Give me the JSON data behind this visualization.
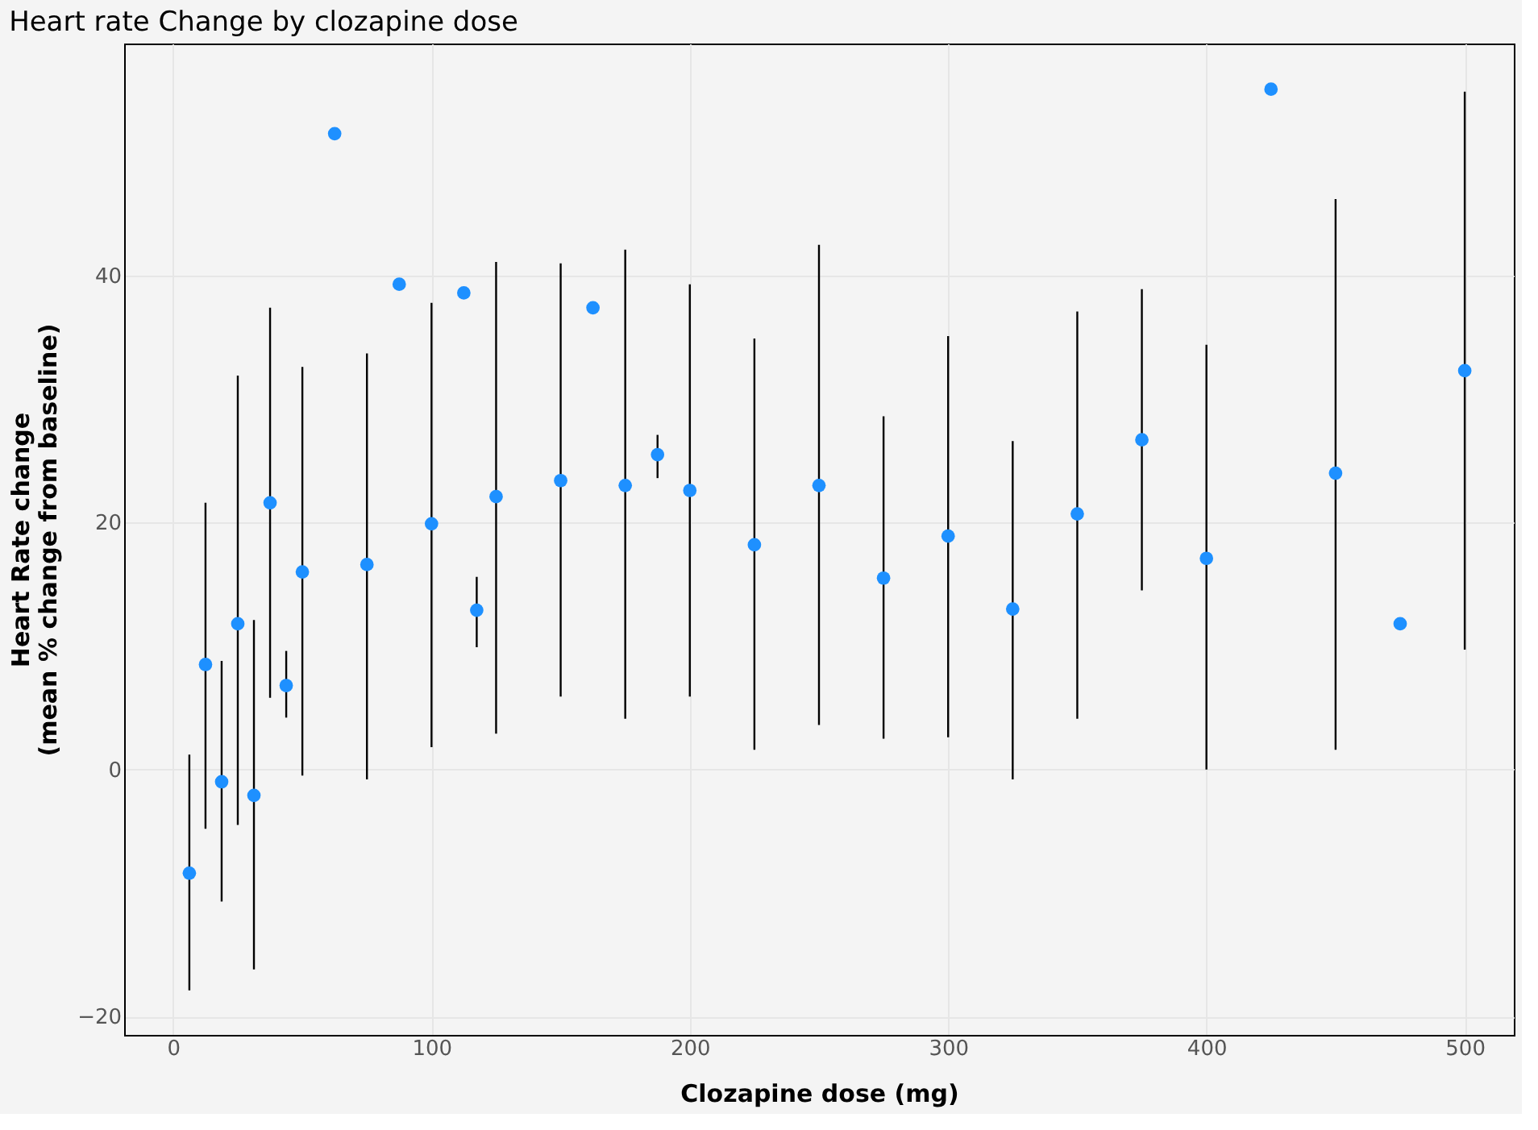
{
  "chart_data": {
    "type": "scatter",
    "title": "Heart rate Change by clozapine dose",
    "xlabel": "Clozapine dose (mg)",
    "ylabel": "Heart Rate change\n(mean % change from baseline)",
    "x": [
      6.25,
      12.5,
      18.75,
      25,
      31.25,
      37.5,
      43.75,
      50,
      62.5,
      75,
      87.5,
      100,
      112.5,
      117.5,
      125,
      150,
      162.5,
      175,
      187.5,
      200,
      225,
      250,
      275,
      300,
      325,
      350,
      375,
      400,
      425,
      450,
      475,
      500
    ],
    "series": [
      {
        "color": "#1e90ff",
        "values": [
          -8.4,
          8.5,
          -1.0,
          11.8,
          -2.1,
          21.6,
          6.8,
          16.0,
          51.5,
          16.6,
          39.3,
          19.9,
          38.6,
          12.9,
          22.1,
          23.4,
          37.4,
          23.0,
          25.5,
          22.6,
          18.2,
          23.0,
          15.5,
          18.9,
          13.0,
          20.7,
          26.7,
          17.1,
          55.1,
          24.0,
          11.8,
          32.3
        ],
        "errors": [
          [
            -17.9,
            1.2
          ],
          [
            -4.8,
            21.6
          ],
          [
            -10.7,
            8.8
          ],
          [
            -4.5,
            31.9
          ],
          [
            -16.2,
            12.1
          ],
          [
            5.8,
            37.4
          ],
          [
            4.2,
            9.6
          ],
          [
            -0.5,
            32.6
          ],
          null,
          [
            -0.8,
            33.7
          ],
          null,
          [
            1.8,
            37.8
          ],
          null,
          [
            9.9,
            15.6
          ],
          [
            2.9,
            41.1
          ],
          [
            5.9,
            41.0
          ],
          null,
          [
            4.1,
            42.1
          ],
          [
            23.6,
            27.1
          ],
          [
            5.9,
            39.3
          ],
          [
            1.6,
            34.9
          ],
          [
            3.6,
            42.5
          ],
          [
            2.5,
            28.6
          ],
          [
            2.6,
            35.1
          ],
          [
            -0.8,
            26.6
          ],
          [
            4.1,
            37.1
          ],
          [
            14.5,
            38.9
          ],
          [
            0.0,
            34.4
          ],
          null,
          [
            1.6,
            46.2
          ],
          null,
          [
            9.7,
            54.9
          ]
        ]
      }
    ],
    "xlim": [
      -19,
      519
    ],
    "xticks": [
      0,
      100,
      200,
      300,
      400,
      500
    ],
    "ylim": [
      -21.5,
      58.8
    ],
    "yticks": [
      -20,
      0,
      20,
      40
    ],
    "grid": true,
    "marker": "circle"
  }
}
